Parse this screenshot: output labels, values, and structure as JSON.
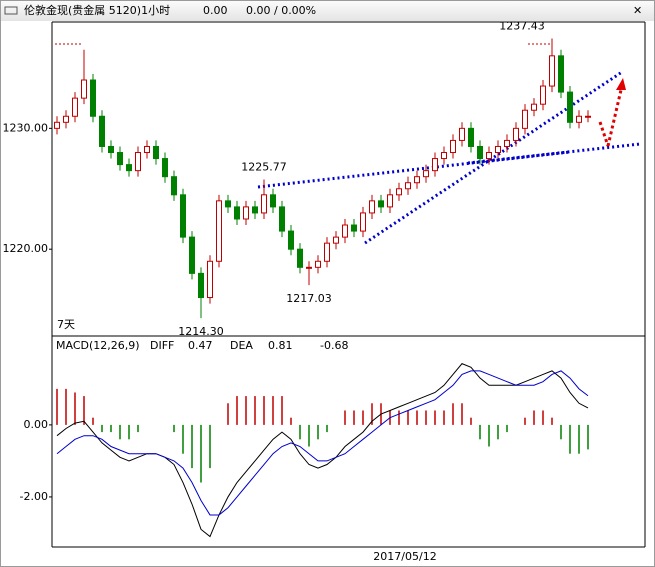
{
  "chart_data": [
    {
      "type": "candlestick",
      "title": "伦敦金现(贵金属 5120)1小时",
      "info": [
        "0.00",
        "0.00 / 0.00%"
      ],
      "period_label": "7天",
      "up_color": "#c00000",
      "down_color": "#008000",
      "ylim": [
        1212.9,
        1238.8
      ],
      "yticks": [
        {
          "value": 1220,
          "label": "1220.00"
        },
        {
          "value": 1230,
          "label": "1230.00"
        }
      ],
      "open": [
        1230,
        1230.5,
        1231,
        1232.5,
        1234,
        1231,
        1228.5,
        1228,
        1227,
        1226.5,
        1228,
        1228.5,
        1227.5,
        1226,
        1224.5,
        1221,
        1218,
        1216,
        1219,
        1224,
        1223.5,
        1222.5,
        1223.5,
        1223,
        1224.5,
        1223.5,
        1221.5,
        1220,
        1218.5,
        1218.5,
        1219,
        1220.5,
        1221,
        1222,
        1221.5,
        1223,
        1224,
        1223.5,
        1224.5,
        1225,
        1225.5,
        1226,
        1226.5,
        1227.5,
        1228,
        1229,
        1230,
        1228.5,
        1227.5,
        1228,
        1228.5,
        1229,
        1230,
        1231.5,
        1232,
        1233.5,
        1236,
        1233,
        1230.5,
        1231
      ],
      "high": [
        1231,
        1231.5,
        1233,
        1236.5,
        1234.5,
        1231.5,
        1229,
        1228.5,
        1227.5,
        1228.5,
        1229,
        1229,
        1228,
        1226.5,
        1225,
        1221.5,
        1218.5,
        1219.5,
        1224.5,
        1224.5,
        1224,
        1224,
        1224,
        1225.77,
        1225,
        1224,
        1222,
        1220.5,
        1219,
        1219.5,
        1221,
        1221.5,
        1222.5,
        1222.5,
        1223.5,
        1224.5,
        1224.5,
        1225,
        1225.5,
        1226,
        1226.5,
        1227,
        1228,
        1228.5,
        1229.5,
        1230.5,
        1230.5,
        1229,
        1228.5,
        1229,
        1229.5,
        1230.5,
        1232,
        1232.5,
        1234,
        1237.43,
        1236.5,
        1233.5,
        1231.5,
        1231.5
      ],
      "low": [
        1229.5,
        1230,
        1230.5,
        1232,
        1230.5,
        1228,
        1227.5,
        1226.5,
        1226,
        1226,
        1227.5,
        1227,
        1225.5,
        1224,
        1220.5,
        1217.5,
        1214.3,
        1215.5,
        1218.5,
        1223,
        1222,
        1222,
        1222.5,
        1222.5,
        1223,
        1221,
        1219.5,
        1218,
        1217.03,
        1218,
        1218.5,
        1220,
        1220.5,
        1221,
        1221,
        1222.5,
        1223,
        1223,
        1224,
        1224.5,
        1225,
        1225.5,
        1226,
        1227,
        1227.5,
        1228.5,
        1228,
        1227,
        1227,
        1227.5,
        1228,
        1228.5,
        1229.5,
        1231,
        1231.5,
        1233,
        1232.5,
        1230,
        1230,
        1230.5
      ],
      "close": [
        1230.5,
        1231,
        1232.5,
        1234,
        1231,
        1228.5,
        1228,
        1227,
        1226.5,
        1228,
        1228.5,
        1227.5,
        1226,
        1224.5,
        1221,
        1218,
        1216,
        1219,
        1224,
        1223.5,
        1222.5,
        1223.5,
        1223,
        1224.5,
        1223.5,
        1221.5,
        1220,
        1218.5,
        1218.5,
        1219,
        1220.5,
        1221,
        1222,
        1221.5,
        1223,
        1224,
        1223.5,
        1224.5,
        1225,
        1225.5,
        1226,
        1226.5,
        1227.5,
        1228,
        1229,
        1230,
        1228.5,
        1227.5,
        1228,
        1228.5,
        1229,
        1230,
        1231.5,
        1232,
        1233.5,
        1236,
        1233,
        1230.5,
        1231,
        1231
      ],
      "annotations": [
        {
          "text": "1237.43",
          "value": 1237.43,
          "color": "#c00000"
        },
        {
          "text": "1225.77",
          "value": 1225.77,
          "color": "#c00000"
        },
        {
          "text": "1217.03",
          "value": 1217.03,
          "color": "#008000"
        },
        {
          "text": "1214.30",
          "value": 1214.3,
          "color": "#008000"
        }
      ]
    },
    {
      "type": "macd",
      "title": "MACD(12,26,9)",
      "x_label": "2017/05/12",
      "ylim": [
        -3.39,
        2.44
      ],
      "yticks": [
        {
          "value": -2,
          "label": "-2.00"
        },
        {
          "value": 0,
          "label": "0.00"
        }
      ],
      "series": [
        {
          "name": "DIFF",
          "color": "#000000",
          "values": [
            -0.3,
            -0.1,
            0.05,
            0.1,
            -0.2,
            -0.5,
            -0.7,
            -0.9,
            -1.0,
            -0.9,
            -0.8,
            -0.8,
            -0.9,
            -1.1,
            -1.6,
            -2.2,
            -2.9,
            -3.1,
            -2.5,
            -2.0,
            -1.6,
            -1.3,
            -1.0,
            -0.7,
            -0.4,
            -0.2,
            -0.4,
            -0.8,
            -1.1,
            -1.2,
            -1.1,
            -0.9,
            -0.6,
            -0.4,
            -0.2,
            0.1,
            0.3,
            0.4,
            0.5,
            0.6,
            0.7,
            0.8,
            0.9,
            1.1,
            1.4,
            1.7,
            1.6,
            1.3,
            1.1,
            1.1,
            1.1,
            1.1,
            1.2,
            1.3,
            1.4,
            1.5,
            1.3,
            0.9,
            0.6,
            0.47
          ]
        },
        {
          "name": "DEA",
          "color": "#0000cc",
          "values": [
            -0.8,
            -0.6,
            -0.4,
            -0.3,
            -0.3,
            -0.4,
            -0.6,
            -0.7,
            -0.8,
            -0.8,
            -0.8,
            -0.8,
            -0.9,
            -1.0,
            -1.2,
            -1.6,
            -2.1,
            -2.5,
            -2.5,
            -2.3,
            -2.0,
            -1.7,
            -1.4,
            -1.1,
            -0.8,
            -0.6,
            -0.5,
            -0.6,
            -0.8,
            -1.0,
            -1.0,
            -0.9,
            -0.8,
            -0.6,
            -0.4,
            -0.2,
            0.0,
            0.2,
            0.3,
            0.4,
            0.5,
            0.6,
            0.7,
            0.9,
            1.1,
            1.4,
            1.5,
            1.5,
            1.4,
            1.3,
            1.2,
            1.1,
            1.1,
            1.1,
            1.2,
            1.4,
            1.5,
            1.3,
            1.0,
            0.81
          ]
        }
      ],
      "histogram": {
        "up_color": "#c00000",
        "down_color": "#008000",
        "values": [
          1.0,
          1.0,
          0.9,
          0.8,
          0.2,
          -0.2,
          -0.2,
          -0.4,
          -0.4,
          -0.2,
          0,
          0,
          0,
          -0.2,
          -0.8,
          -1.2,
          -1.6,
          -1.2,
          0,
          0.6,
          0.8,
          0.8,
          0.8,
          0.8,
          0.8,
          0.8,
          0.2,
          -0.4,
          -0.6,
          -0.4,
          -0.2,
          0,
          0.4,
          0.4,
          0.4,
          0.6,
          0.6,
          0.4,
          0.4,
          0.4,
          0.4,
          0.4,
          0.4,
          0.4,
          0.6,
          0.6,
          0.2,
          -0.4,
          -0.6,
          -0.4,
          -0.2,
          0,
          0.2,
          0.4,
          0.4,
          0.2,
          -0.4,
          -0.8,
          -0.8,
          -0.68
        ]
      }
    }
  ]
}
